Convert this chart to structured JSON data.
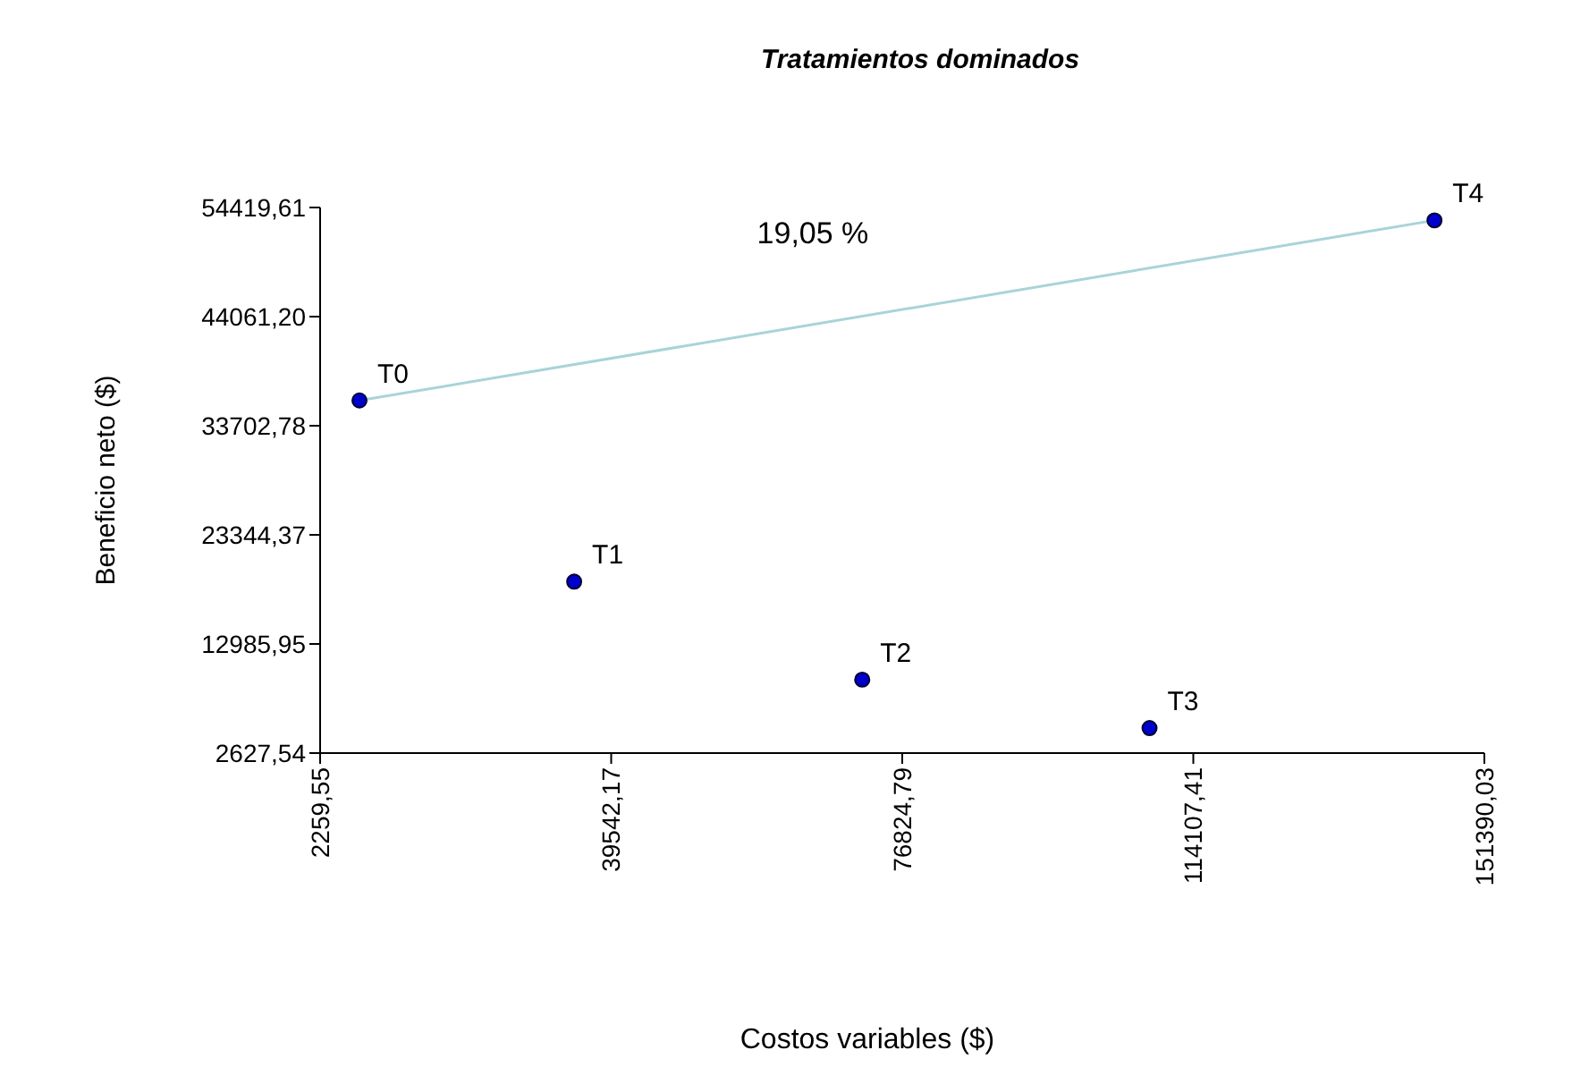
{
  "chart_data": {
    "type": "scatter",
    "title": "Tratamientos dominados",
    "xlabel": "Costos variables ($)",
    "ylabel": "Beneficio neto ($)",
    "xlim": [
      2259.55,
      151390.03
    ],
    "ylim": [
      2627.54,
      54419.61
    ],
    "xticks": [
      {
        "value": 2259.55,
        "label": "2259,55"
      },
      {
        "value": 39542.17,
        "label": "39542,17"
      },
      {
        "value": 76824.79,
        "label": "76824,79"
      },
      {
        "value": 114107.41,
        "label": "114107,41"
      },
      {
        "value": 151390.03,
        "label": "151390,03"
      }
    ],
    "yticks": [
      {
        "value": 2627.54,
        "label": "2627,54"
      },
      {
        "value": 12985.95,
        "label": "12985,95"
      },
      {
        "value": 23344.37,
        "label": "23344,37"
      },
      {
        "value": 33702.78,
        "label": "33702,78"
      },
      {
        "value": 44061.2,
        "label": "44061,20"
      },
      {
        "value": 54419.61,
        "label": "54419,61"
      }
    ],
    "grid": false,
    "series": [
      {
        "type": "line",
        "marker": "none",
        "color": "#a8d4d8",
        "x": [
          7300,
          145000
        ],
        "values": [
          36100,
          53200
        ]
      },
      {
        "marker": "circle",
        "color": "#0000cc",
        "x": [
          7300,
          34800,
          71700,
          108500,
          145000
        ],
        "values": [
          36100,
          18900,
          9600,
          5000,
          53200
        ]
      }
    ],
    "annotations": [
      {
        "text": "T0",
        "x": 7300,
        "y": 36100
      },
      {
        "text": "T1",
        "x": 34800,
        "y": 18900
      },
      {
        "text": "T2",
        "x": 71700,
        "y": 9600
      },
      {
        "text": "T3",
        "x": 108500,
        "y": 5000
      },
      {
        "text": "T4",
        "x": 145000,
        "y": 53200
      },
      "19,05 %"
    ]
  }
}
